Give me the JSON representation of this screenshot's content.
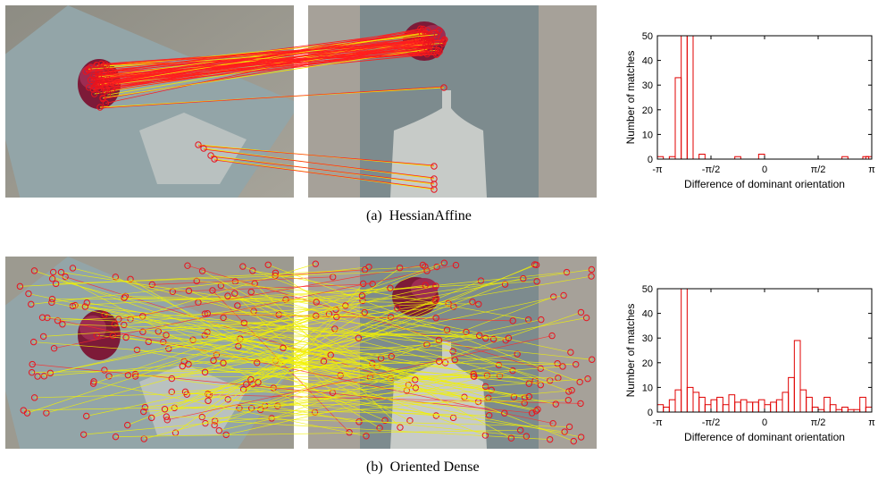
{
  "figure": {
    "row_a": {
      "caption_label": "(a)",
      "caption_text": "HessianAffine"
    },
    "row_b": {
      "caption_label": "(b)",
      "caption_text": "Oriented Dense"
    }
  },
  "colors": {
    "match_line_a": "#ff1e1e",
    "match_line_b": "#f2f200",
    "keypoint": "#e8141e",
    "histogram": "#e00000"
  },
  "chart_data": [
    {
      "type": "bar",
      "title": "",
      "xlabel": "Difference of dominant orientation",
      "ylabel": "Number of matches",
      "ylim": [
        0,
        50
      ],
      "yticks": [
        "0",
        "10",
        "20",
        "30",
        "40",
        "50"
      ],
      "xticks": [
        "-π",
        "-π/2",
        "0",
        "π/2",
        "π"
      ],
      "xlim": [
        -3.1416,
        3.1416
      ],
      "bin_width": 0.1745,
      "bin_centers": [
        -3.054,
        -2.705,
        -2.531,
        -2.356,
        -2.182,
        -1.833,
        -0.785,
        -0.087,
        2.356,
        2.967,
        3.054
      ],
      "values": [
        1,
        1,
        33,
        50,
        50,
        2,
        1,
        2,
        1,
        1,
        1
      ]
    },
    {
      "type": "bar",
      "title": "",
      "xlabel": "Difference of dominant orientation",
      "ylabel": "Number of matches",
      "ylim": [
        0,
        50
      ],
      "yticks": [
        "0",
        "10",
        "20",
        "30",
        "40",
        "50"
      ],
      "xticks": [
        "-π",
        "-π/2",
        "0",
        "π/2",
        "π"
      ],
      "xlim": [
        -3.1416,
        3.1416
      ],
      "bin_width": 0.1745,
      "bin_centers": [
        -3.054,
        -2.88,
        -2.705,
        -2.531,
        -2.356,
        -2.182,
        -2.007,
        -1.833,
        -1.658,
        -1.484,
        -1.309,
        -1.134,
        -0.96,
        -0.785,
        -0.611,
        -0.436,
        -0.262,
        -0.087,
        0.087,
        0.262,
        0.436,
        0.611,
        0.785,
        0.96,
        1.134,
        1.309,
        1.484,
        1.658,
        1.833,
        2.007,
        2.182,
        2.356,
        2.531,
        2.705,
        2.88,
        3.054
      ],
      "values": [
        3,
        2,
        5,
        9,
        50,
        10,
        8,
        6,
        3,
        5,
        6,
        3,
        7,
        4,
        5,
        4,
        4,
        5,
        3,
        4,
        5,
        8,
        14,
        29,
        9,
        6,
        2,
        1,
        6,
        3,
        1,
        2,
        1,
        1,
        6,
        2
      ]
    }
  ]
}
